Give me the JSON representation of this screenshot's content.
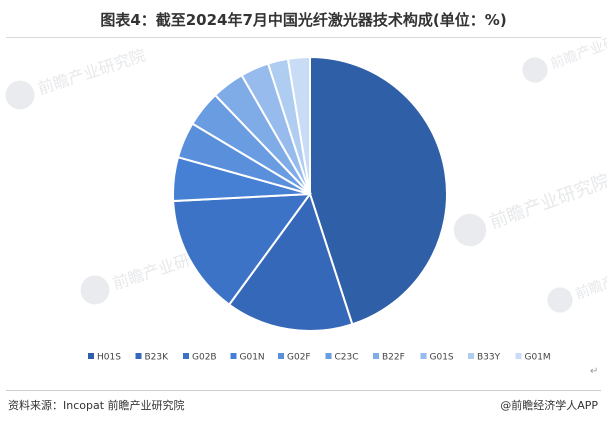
{
  "title": "图表4：截至2024年7月中国光纤激光器技术构成(单位：%)",
  "source": "资料来源：Incopat 前瞻产业研究院",
  "brand": "@前瞻经济学人APP",
  "watermark_text": "前瞻产业研究院",
  "paragraph_mark": "↵",
  "chart_data": {
    "type": "pie",
    "title": "图表4：截至2024年7月中国光纤激光器技术构成(单位：%)",
    "legend_position": "bottom",
    "start_angle": "12 o'clock, clockwise",
    "categories": [
      "H01S",
      "B23K",
      "G02B",
      "G01N",
      "G02F",
      "C23C",
      "B22F",
      "G01S",
      "B33Y",
      "G01M"
    ],
    "values": [
      45.5,
      15.2,
      14.3,
      5.2,
      4.3,
      4.3,
      3.9,
      3.4,
      2.4,
      2.6
    ],
    "colors": [
      "#2e5fa7",
      "#3568b8",
      "#3d73c7",
      "#4680d4",
      "#5a8fdc",
      "#6a9ce2",
      "#7fabe7",
      "#97bbec",
      "#afcdf1",
      "#c8dcf6"
    ]
  }
}
